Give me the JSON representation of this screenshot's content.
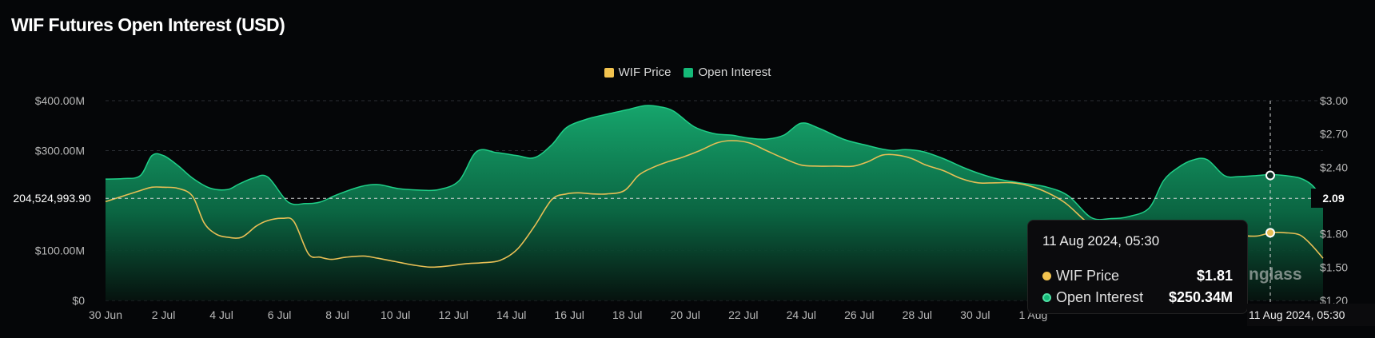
{
  "title": "WIF Futures Open Interest (USD)",
  "legend": [
    {
      "label": "WIF Price",
      "color": "#f2c34f"
    },
    {
      "label": "Open Interest",
      "color": "#15b978"
    }
  ],
  "watermark": "nglass",
  "crosshair": {
    "y_label_left": "204,524,993.90",
    "y_label_right": "2.09",
    "x_label": "11 Aug 2024, 05:30"
  },
  "tooltip": {
    "date": "11 Aug 2024, 05:30",
    "rows": [
      {
        "name": "WIF Price",
        "value": "$1.81",
        "color": "#f2c34f"
      },
      {
        "name": "Open Interest",
        "value": "$250.34M",
        "color": "#15b978"
      }
    ]
  },
  "chart_data": {
    "type": "area",
    "title": "WIF Futures Open Interest (USD)",
    "x_ticks": [
      "30 Jun",
      "2 Jul",
      "4 Jul",
      "6 Jul",
      "8 Jul",
      "10 Jul",
      "12 Jul",
      "14 Jul",
      "16 Jul",
      "18 Jul",
      "20 Jul",
      "22 Jul",
      "24 Jul",
      "26 Jul",
      "28 Jul",
      "30 Jul",
      "1 Aug"
    ],
    "y_left": {
      "ticks": [
        "$0",
        "$100.00M",
        "$300.00M",
        "$400.00M"
      ],
      "tick_values": [
        0,
        100000000,
        300000000,
        400000000
      ],
      "range": [
        0,
        400000000
      ]
    },
    "y_right": {
      "ticks": [
        "$1.20",
        "$1.50",
        "$1.80",
        "$2.40",
        "$2.70",
        "$3.00"
      ],
      "tick_values": [
        1.2,
        1.5,
        1.8,
        2.4,
        2.7,
        3.0
      ],
      "range": [
        1.2,
        3.0
      ]
    },
    "x_range_days": [
      0,
      42
    ],
    "series": [
      {
        "name": "Open Interest",
        "axis": "left",
        "x": [
          0,
          0.6,
          1.2,
          1.6,
          2,
          2.5,
          3,
          3.6,
          4.2,
          4.6,
          5.1,
          5.6,
          6.3,
          6.9,
          7.4,
          8,
          8.8,
          9.4,
          10.1,
          10.8,
          11.5,
          12.2,
          12.8,
          13.5,
          14.2,
          14.8,
          15.4,
          15.9,
          16.6,
          17.3,
          18,
          18.6,
          19.1,
          19.6,
          20.3,
          21,
          21.6,
          22.2,
          22.8,
          23.4,
          24,
          24.6,
          25.5,
          26.3,
          26.8,
          27.2,
          27.6,
          28.2,
          28.9,
          29.6,
          30.2,
          30.8,
          31.6,
          32.4,
          33.2,
          34,
          34.7,
          35.3,
          36,
          36.5,
          37,
          37.5,
          38,
          38.6,
          39.1,
          39.7,
          40.2,
          40.7,
          41.2,
          41.6,
          42
        ],
        "values": [
          243000000,
          244000000,
          250000000,
          290000000,
          290000000,
          270000000,
          245000000,
          225000000,
          222000000,
          233000000,
          245000000,
          247000000,
          197000000,
          194000000,
          197000000,
          212000000,
          228000000,
          232000000,
          224000000,
          221000000,
          222000000,
          240000000,
          298000000,
          296000000,
          290000000,
          286000000,
          312000000,
          346000000,
          363000000,
          373000000,
          382000000,
          390000000,
          388000000,
          379000000,
          348000000,
          334000000,
          331000000,
          325000000,
          323000000,
          331000000,
          355000000,
          345000000,
          322000000,
          310000000,
          303000000,
          300000000,
          302000000,
          298000000,
          284000000,
          266000000,
          253000000,
          243000000,
          235000000,
          228000000,
          210000000,
          166000000,
          164000000,
          168000000,
          185000000,
          240000000,
          266000000,
          281000000,
          282000000,
          250000000,
          248000000,
          250000000,
          252000000,
          250000000,
          245000000,
          232000000,
          204500000
        ]
      },
      {
        "name": "WIF Price",
        "axis": "right",
        "x": [
          0,
          0.6,
          1.2,
          1.6,
          2,
          2.5,
          3,
          3.4,
          3.8,
          4.2,
          4.7,
          5.2,
          5.6,
          6.1,
          6.5,
          7,
          7.4,
          7.8,
          8.3,
          8.9,
          9.4,
          10,
          10.6,
          11.2,
          11.8,
          12.4,
          13,
          13.6,
          14.2,
          14.8,
          15.4,
          15.9,
          16.3,
          16.8,
          17.3,
          17.9,
          18.4,
          18.9,
          19.4,
          19.9,
          20.5,
          21.1,
          21.6,
          22.2,
          22.8,
          23.4,
          24,
          24.6,
          25.2,
          25.8,
          26.3,
          26.8,
          27.3,
          27.8,
          28.3,
          28.9,
          29.5,
          30.1,
          30.7,
          31.3,
          31.9,
          32.5,
          33.1,
          33.7,
          34.3,
          34.9,
          35.5,
          36.1,
          36.7,
          37.3,
          37.9,
          38.5,
          39.1,
          39.7,
          40.2,
          40.7,
          41.2,
          41.6,
          42
        ],
        "values": [
          2.09,
          2.14,
          2.19,
          2.22,
          2.22,
          2.21,
          2.14,
          1.9,
          1.8,
          1.77,
          1.77,
          1.87,
          1.92,
          1.94,
          1.91,
          1.62,
          1.59,
          1.57,
          1.59,
          1.6,
          1.58,
          1.55,
          1.52,
          1.5,
          1.51,
          1.53,
          1.54,
          1.56,
          1.66,
          1.87,
          2.11,
          2.16,
          2.17,
          2.16,
          2.16,
          2.19,
          2.33,
          2.4,
          2.45,
          2.49,
          2.55,
          2.62,
          2.64,
          2.62,
          2.55,
          2.48,
          2.42,
          2.41,
          2.41,
          2.41,
          2.45,
          2.51,
          2.51,
          2.48,
          2.42,
          2.37,
          2.3,
          2.26,
          2.26,
          2.26,
          2.23,
          2.17,
          2.08,
          1.94,
          1.8,
          1.63,
          1.56,
          1.6,
          1.71,
          1.8,
          1.85,
          1.83,
          1.79,
          1.78,
          1.81,
          1.81,
          1.79,
          1.7,
          1.58
        ]
      }
    ],
    "grid": true,
    "legend_position": "top-center"
  }
}
